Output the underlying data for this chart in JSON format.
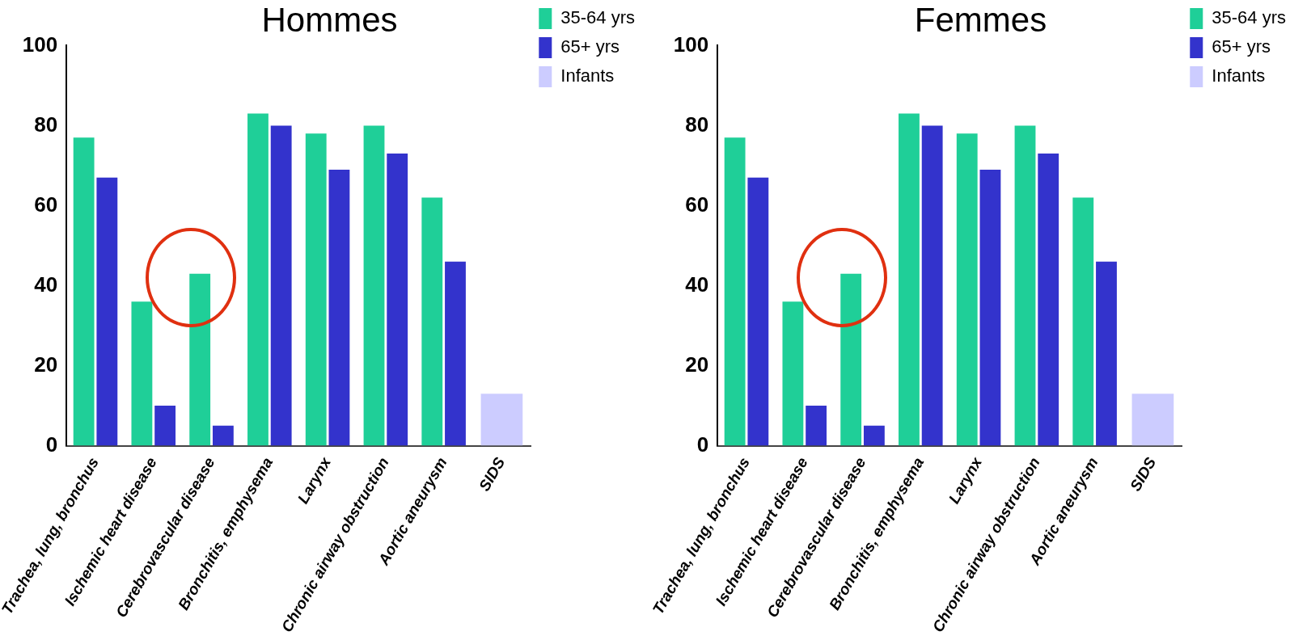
{
  "chart_data": [
    {
      "type": "bar",
      "title": "Hommes",
      "categories": [
        "Trachea, lung, bronchus",
        "Ischemic heart disease",
        "Cerebrovascular disease",
        "Bronchitis, emphysema",
        "Larynx",
        "Chronic airway obstruction",
        "Aortic aneurysm",
        "SIDS"
      ],
      "series": [
        {
          "name": "35-64 yrs",
          "color": "#1fcf98",
          "values": [
            77,
            36,
            43,
            83,
            78,
            80,
            62,
            null
          ]
        },
        {
          "name": "65+ yrs",
          "color": "#3333cc",
          "values": [
            67,
            10,
            5,
            80,
            69,
            73,
            46,
            null
          ]
        },
        {
          "name": "Infants",
          "color": "#ccccff",
          "values": [
            null,
            null,
            null,
            null,
            null,
            null,
            null,
            13
          ]
        }
      ],
      "ylim": [
        0,
        100
      ],
      "yticks": [
        0,
        20,
        40,
        60,
        80,
        100
      ],
      "grid": false,
      "legend": "top right"
    },
    {
      "type": "bar",
      "title": "Femmes",
      "categories": [
        "Trachea, lung, bronchus",
        "Ischemic heart disease",
        "Cerebrovascular disease",
        "Bronchitis, emphysema",
        "Larynx",
        "Chronic airway obstruction",
        "Aortic aneurysm",
        "SIDS"
      ],
      "series": [
        {
          "name": "35-64 yrs",
          "color": "#1fcf98",
          "values": [
            77,
            36,
            43,
            83,
            78,
            80,
            62,
            null
          ]
        },
        {
          "name": "65+ yrs",
          "color": "#3333cc",
          "values": [
            67,
            10,
            5,
            80,
            69,
            73,
            46,
            null
          ]
        },
        {
          "name": "Infants",
          "color": "#ccccff",
          "values": [
            null,
            null,
            null,
            null,
            null,
            null,
            null,
            13
          ]
        }
      ],
      "ylim": [
        0,
        100
      ],
      "yticks": [
        0,
        20,
        40,
        60,
        80,
        100
      ],
      "grid": false,
      "legend": "top right"
    }
  ]
}
